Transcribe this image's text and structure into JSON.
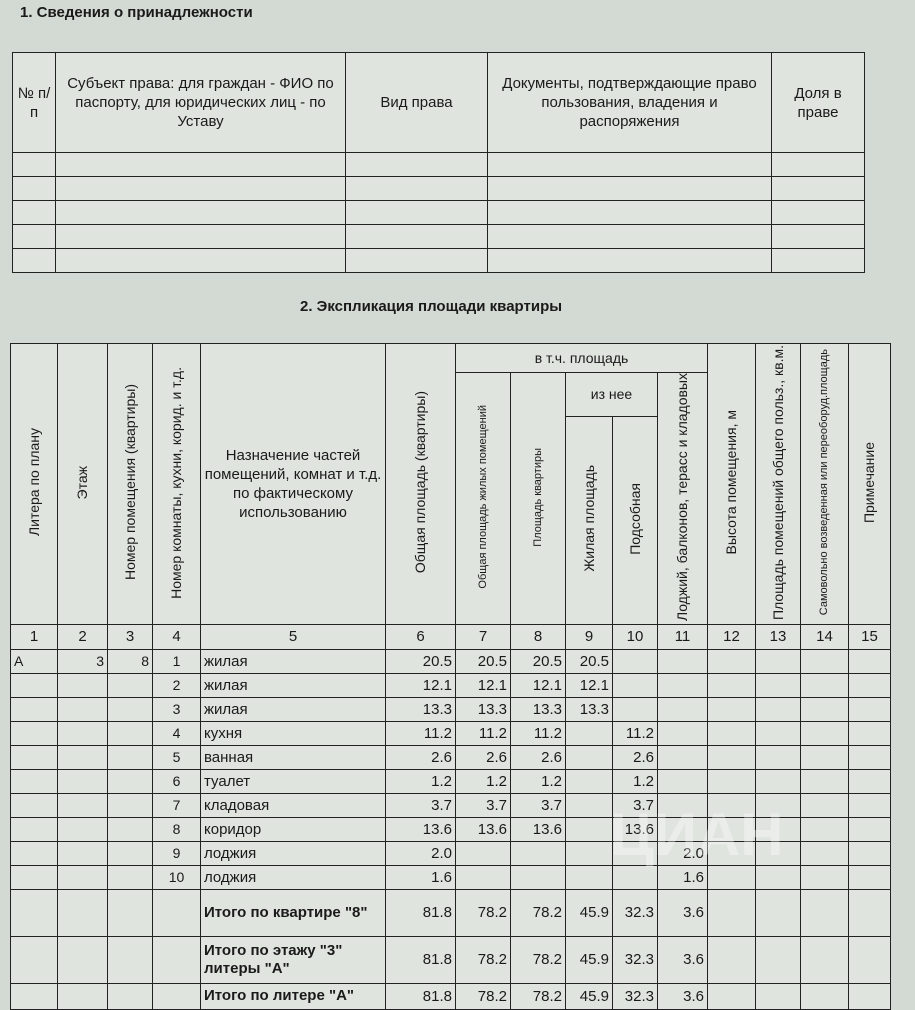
{
  "section1": {
    "title": "1. Сведения о принадлежности",
    "headers": [
      "№ п/п",
      "Субъект права: для граждан - ФИО по паспорту, для юридических лиц - по Уставу",
      "Вид права",
      "Документы, подтверждающие право пользования, владения и распоряжения",
      "Доля в праве"
    ],
    "empty_rows": 5
  },
  "section2": {
    "title": "2. Экспликация площади квартиры",
    "headers": {
      "c1": "Литера по плану",
      "c2": "Этаж",
      "c3": "Номер помещения (квартиры)",
      "c4": "Номер комнаты, кухни, корид. и т.д.",
      "c5": "Назначение частей помещений, комнат и т.д. по фактическому использованию",
      "c6": "Общая площадь (квартиры)",
      "group": "в т.ч. площадь",
      "c7": "Общая площадь жилых помещений",
      "c8": "Площадь квартиры",
      "subgroup": "из нее",
      "c9": "Жилая площадь",
      "c10": "Подсобная",
      "c11": "Лоджий, балконов, терасс и кладовых",
      "c12": "Высота помещения, м",
      "c13": "Площадь помещений общего польз., кв.м.",
      "c14": "Самовольно возведенная или переоборуд.площадь",
      "c15": "Примечание"
    },
    "column_numbers": [
      "1",
      "2",
      "3",
      "4",
      "5",
      "6",
      "7",
      "8",
      "9",
      "10",
      "11",
      "12",
      "13",
      "14",
      "15"
    ],
    "rows": [
      [
        "А",
        "3",
        "8",
        "1",
        "жилая",
        "20.5",
        "20.5",
        "20.5",
        "20.5",
        "",
        "",
        "",
        "",
        "",
        ""
      ],
      [
        "",
        "",
        "",
        "2",
        "жилая",
        "12.1",
        "12.1",
        "12.1",
        "12.1",
        "",
        "",
        "",
        "",
        "",
        ""
      ],
      [
        "",
        "",
        "",
        "3",
        "жилая",
        "13.3",
        "13.3",
        "13.3",
        "13.3",
        "",
        "",
        "",
        "",
        "",
        ""
      ],
      [
        "",
        "",
        "",
        "4",
        "кухня",
        "11.2",
        "11.2",
        "11.2",
        "",
        "11.2",
        "",
        "",
        "",
        "",
        ""
      ],
      [
        "",
        "",
        "",
        "5",
        "ванная",
        "2.6",
        "2.6",
        "2.6",
        "",
        "2.6",
        "",
        "",
        "",
        "",
        ""
      ],
      [
        "",
        "",
        "",
        "6",
        "туалет",
        "1.2",
        "1.2",
        "1.2",
        "",
        "1.2",
        "",
        "",
        "",
        "",
        ""
      ],
      [
        "",
        "",
        "",
        "7",
        "кладовая",
        "3.7",
        "3.7",
        "3.7",
        "",
        "3.7",
        "",
        "",
        "",
        "",
        ""
      ],
      [
        "",
        "",
        "",
        "8",
        "коридор",
        "13.6",
        "13.6",
        "13.6",
        "",
        "13.6",
        "",
        "",
        "",
        "",
        ""
      ],
      [
        "",
        "",
        "",
        "9",
        "лоджия",
        "2.0",
        "",
        "",
        "",
        "",
        "2.0",
        "",
        "",
        "",
        ""
      ],
      [
        "",
        "",
        "",
        "10",
        "лоджия",
        "1.6",
        "",
        "",
        "",
        "",
        "1.6",
        "",
        "",
        "",
        ""
      ]
    ],
    "totals": [
      {
        "label": "Итого по квартире \"8\"",
        "values": [
          "81.8",
          "78.2",
          "78.2",
          "45.9",
          "32.3",
          "3.6"
        ]
      },
      {
        "label": "Итого по этажу \"3\" литеры \"А\"",
        "values": [
          "81.8",
          "78.2",
          "78.2",
          "45.9",
          "32.3",
          "3.6"
        ]
      },
      {
        "label": "Итого по литере \"А\"",
        "values": [
          "81.8",
          "78.2",
          "78.2",
          "45.9",
          "32.3",
          "3.6"
        ]
      }
    ]
  },
  "watermark": "циан"
}
